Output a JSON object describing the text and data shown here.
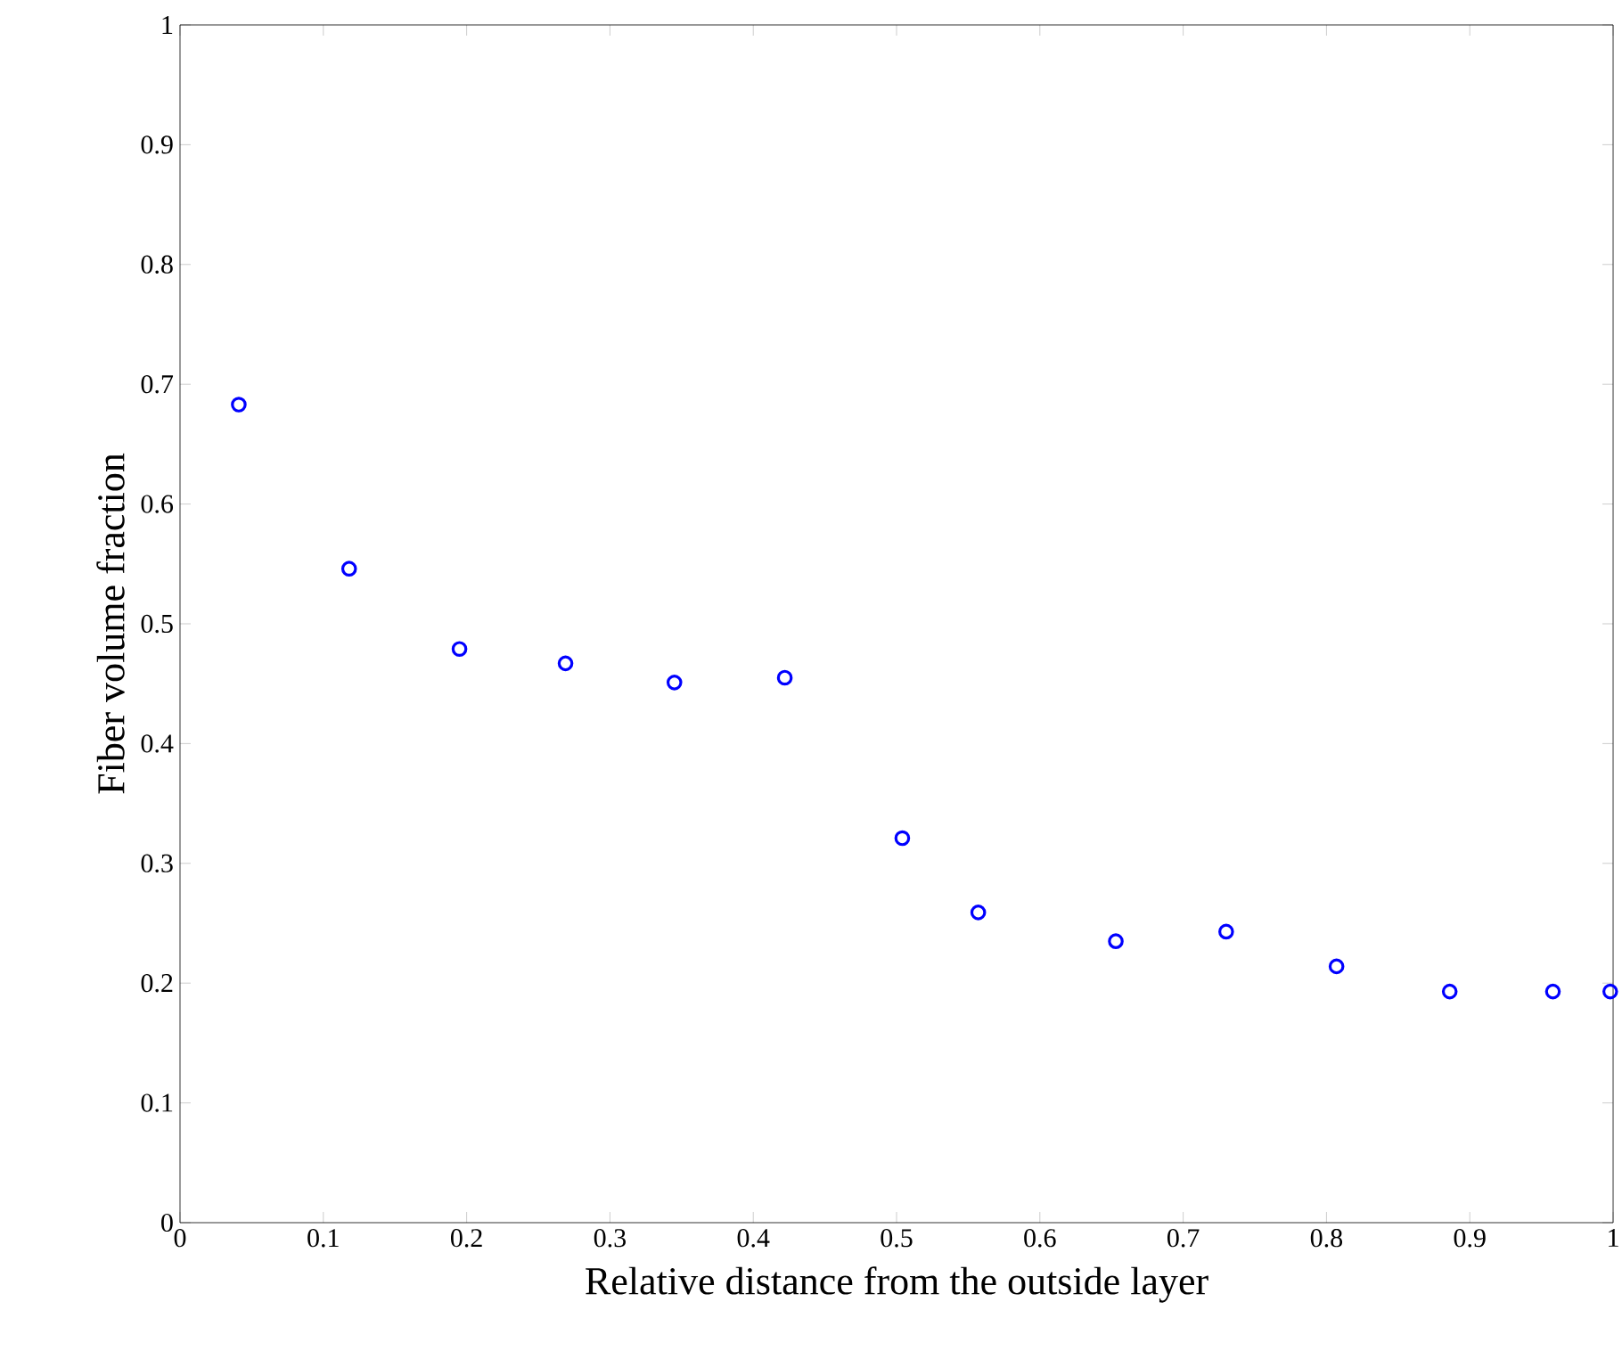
{
  "chart_data": {
    "type": "scatter",
    "xlabel": "Relative distance from the outside layer",
    "ylabel": "Fiber volume fraction",
    "x": [
      0.041,
      0.118,
      0.195,
      0.269,
      0.345,
      0.422,
      0.504,
      0.557,
      0.653,
      0.73,
      0.807,
      0.886,
      0.958,
      0.998
    ],
    "series": [
      {
        "color": "#0000ff",
        "values": [
          0.683,
          0.546,
          0.479,
          0.467,
          0.451,
          0.455,
          0.321,
          0.259,
          0.235,
          0.243,
          0.214,
          0.193,
          0.193,
          0.193
        ]
      }
    ],
    "marker": "circle",
    "grid": false,
    "xlim": [
      0,
      1
    ],
    "ylim": [
      0,
      1
    ],
    "xticks": [
      0,
      0.1,
      0.2,
      0.3,
      0.4,
      0.5,
      0.6,
      0.7,
      0.8,
      0.9,
      1
    ],
    "yticks": [
      0,
      0.1,
      0.2,
      0.3,
      0.4,
      0.5,
      0.6,
      0.7,
      0.8,
      0.9,
      1
    ]
  }
}
